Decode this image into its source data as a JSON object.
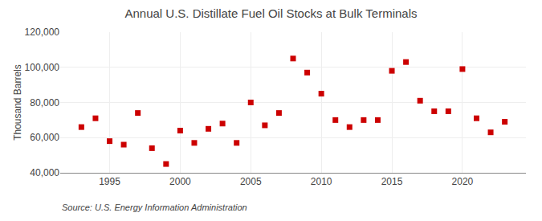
{
  "chart_data": {
    "type": "scatter",
    "title": "Annual U.S. Distillate Fuel Oil Stocks at Bulk Terminals",
    "ylabel": "Thousand Barrels",
    "annotations": [
      "Source: U.S. Energy Information Administration"
    ],
    "x": [
      1993,
      1994,
      1995,
      1996,
      1997,
      1998,
      1999,
      2000,
      2001,
      2002,
      2003,
      2004,
      2005,
      2006,
      2007,
      2008,
      2009,
      2010,
      2011,
      2012,
      2013,
      2014,
      2015,
      2016,
      2017,
      2018,
      2019,
      2020,
      2021,
      2022,
      2023
    ],
    "values": [
      66000,
      71000,
      58000,
      56000,
      74000,
      54000,
      45000,
      64000,
      57000,
      65000,
      68000,
      57000,
      80000,
      67000,
      74000,
      105000,
      97000,
      85000,
      70000,
      66000,
      70000,
      70000,
      98000,
      103000,
      81000,
      75000,
      75000,
      99000,
      71000,
      63000,
      69000
    ],
    "color": "#cc0000",
    "marker": "square",
    "xlim": [
      1991.5,
      2024.5
    ],
    "xticks": [
      1995,
      2000,
      2005,
      2010,
      2015,
      2020
    ],
    "ylim": [
      40000,
      120000
    ],
    "yticks": [
      {
        "value": 40000,
        "label": "40,000"
      },
      {
        "value": 60000,
        "label": "60,000"
      },
      {
        "value": 80000,
        "label": "80,000"
      },
      {
        "value": 100000,
        "label": "100,000"
      },
      {
        "value": 120000,
        "label": "120,000"
      }
    ],
    "grid": true
  }
}
